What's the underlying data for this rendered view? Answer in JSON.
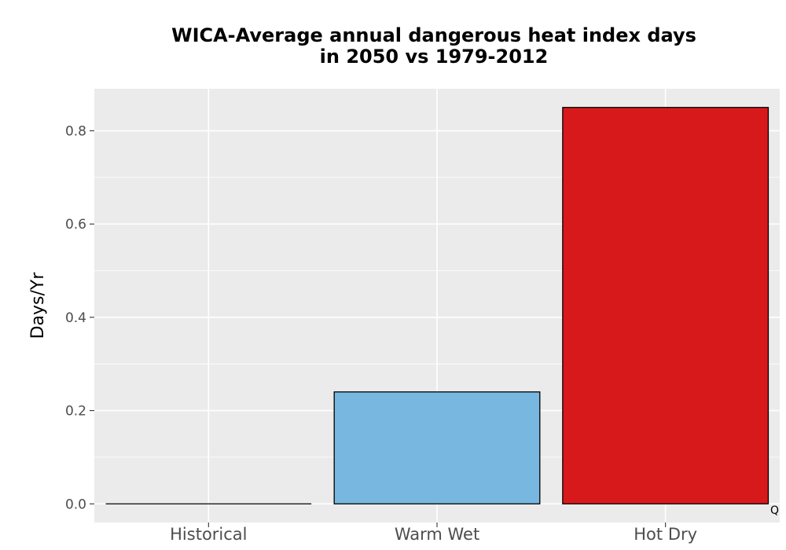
{
  "chart_data": {
    "type": "bar",
    "title_line1": "WICA-Average annual dangerous heat index days",
    "title_line2": "in 2050 vs 1979-2012",
    "xlabel": "",
    "ylabel": "Days/Yr",
    "categories": [
      "Historical",
      "Warm Wet",
      "Hot Dry"
    ],
    "values": [
      0.0,
      0.24,
      0.85
    ],
    "colors": [
      "#ffffff",
      "#78b7e0",
      "#d7191c"
    ],
    "ylim": [
      -0.04,
      0.89
    ],
    "yticks": [
      0.0,
      0.2,
      0.4,
      0.6,
      0.8
    ],
    "ytick_labels": [
      "0.0",
      "0.2",
      "0.4",
      "0.6",
      "0.8"
    ],
    "grid": true,
    "panel_background": "#ebebeb"
  },
  "watermark": "Q"
}
